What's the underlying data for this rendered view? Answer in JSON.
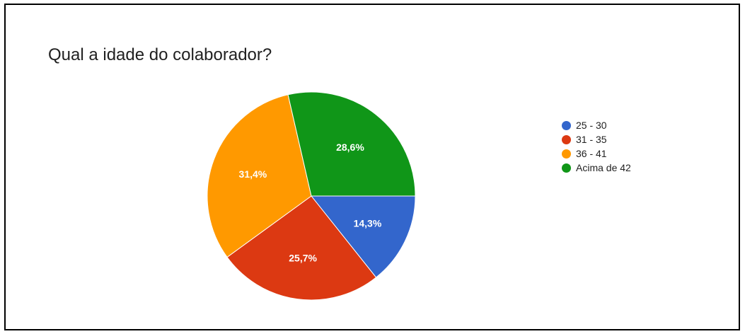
{
  "chart_data": {
    "type": "pie",
    "title": "Qual a idade do colaborador?",
    "categories": [
      "25 - 30",
      "31 - 35",
      "36 - 41",
      "Acima de 42"
    ],
    "values": [
      14.3,
      25.7,
      31.4,
      28.6
    ],
    "labels": [
      "14,3%",
      "25,7%",
      "31,4%",
      "28,6%"
    ],
    "colors": [
      "#3366cc",
      "#dc3912",
      "#ff9900",
      "#109618"
    ],
    "legend_position": "right"
  }
}
